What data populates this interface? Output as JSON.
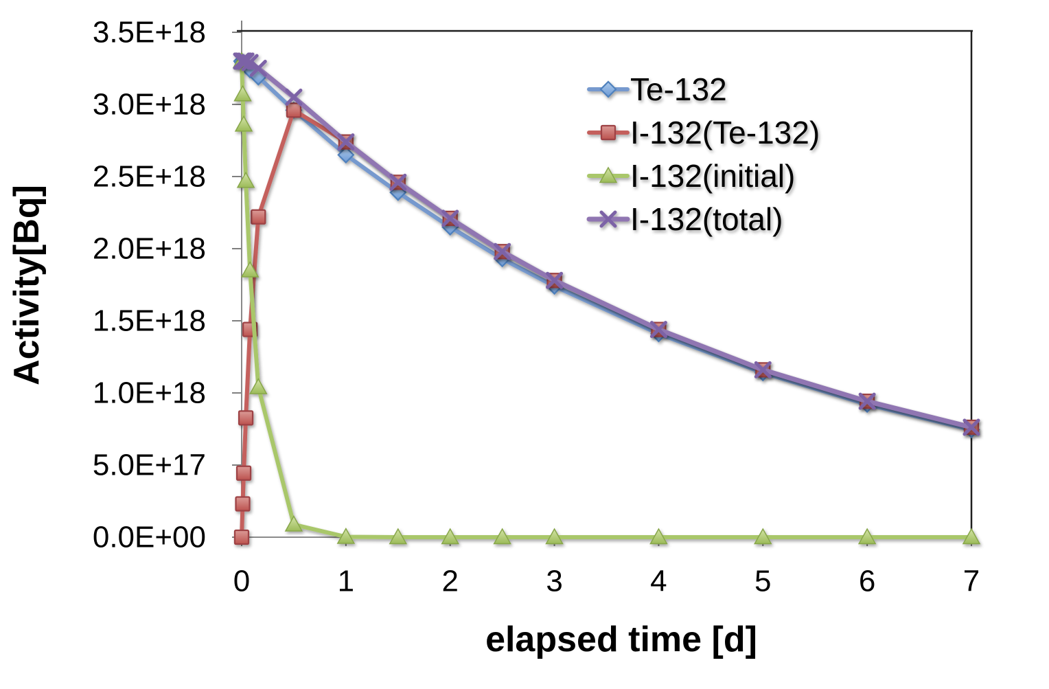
{
  "chart_data": {
    "type": "line",
    "title": "",
    "xlabel": "elapsed time [d]",
    "ylabel": "Activity[Bq]",
    "xlim": [
      0,
      7
    ],
    "ylim": [
      0,
      3.5e+18
    ],
    "grid": false,
    "legend_position": "inside-top-right",
    "x_ticks": [
      0,
      1,
      2,
      3,
      4,
      5,
      6,
      7
    ],
    "x_tick_labels": [
      "0",
      "1",
      "2",
      "3",
      "4",
      "5",
      "6",
      "7"
    ],
    "y_ticks": [
      0,
      5e+17,
      1e+18,
      1.5e+18,
      2e+18,
      2.5e+18,
      3e+18,
      3.5e+18
    ],
    "y_tick_labels": [
      "0.0E+00",
      "5.0E+17",
      "1.0E+18",
      "1.5E+18",
      "2.0E+18",
      "2.5E+18",
      "3.0E+18",
      "3.5E+18"
    ],
    "x": [
      0,
      0.01,
      0.02,
      0.04,
      0.08,
      0.16,
      0.5,
      1,
      1.5,
      2,
      2.5,
      3,
      4,
      5,
      6,
      7
    ],
    "series": [
      {
        "name": "Te-132",
        "marker": "diamond",
        "line_color": "#7699CE",
        "line_width": 6,
        "marker_fill_light": "#AECBEC",
        "marker_fill_dark": "#6C99D4",
        "marker_stroke": "#4F81BD",
        "values": [
          3.3e+18,
          3.29e+18,
          3.29e+18,
          3.27e+18,
          3.24e+18,
          3.19e+18,
          2.96e+18,
          2.65e+18,
          2.39e+18,
          2.15e+18,
          1.93e+18,
          1.74e+18,
          1.41e+18,
          1.14e+18,
          9.21e+17,
          7.45e+17
        ]
      },
      {
        "name": "I-132(Te-132)",
        "marker": "square",
        "line_color": "#C4615D",
        "line_width": 6,
        "marker_fill_light": "#DB9B97",
        "marker_fill_dark": "#BC524E",
        "marker_stroke": "#9E4345",
        "values": [
          0,
          2.31e+17,
          4.44e+17,
          8.27e+17,
          1.44e+18,
          2.22e+18,
          2.96e+18,
          2.74e+18,
          2.46e+18,
          2.21e+18,
          1.98e+18,
          1.78e+18,
          1.44e+18,
          1.16e+18,
          9.42e+17,
          7.62e+17
        ]
      },
      {
        "name": "I-132(initial)",
        "marker": "triangle",
        "line_color": "#A9C76B",
        "line_width": 6,
        "marker_fill_light": "#D3E3A6",
        "marker_fill_dark": "#9CBB59",
        "marker_stroke": "#87A64A",
        "values": [
          3.3e+18,
          3.07e+18,
          2.86e+18,
          2.47e+18,
          1.85e+18,
          1.04e+18,
          8.8e+16,
          2400000000000000.0,
          0,
          0,
          0,
          0,
          0,
          0,
          0,
          0
        ]
      },
      {
        "name": "I-132(total)",
        "marker": "x",
        "line_color": "#9076B2",
        "line_width": 7,
        "marker_stroke": "#7B62A6",
        "values": [
          3.3e+18,
          3.3e+18,
          3.3e+18,
          3.3e+18,
          3.29e+18,
          3.25e+18,
          3.05e+18,
          2.74e+18,
          2.46e+18,
          2.21e+18,
          1.98e+18,
          1.78e+18,
          1.44e+18,
          1.16e+18,
          9.42e+17,
          7.62e+17
        ]
      }
    ],
    "colors": {
      "axis_line": "#8A8A8A",
      "tick_mark": "#7F7F7F",
      "frame_line": "#1F1F1F",
      "text": "#000000",
      "background": "#FFFFFF"
    }
  }
}
